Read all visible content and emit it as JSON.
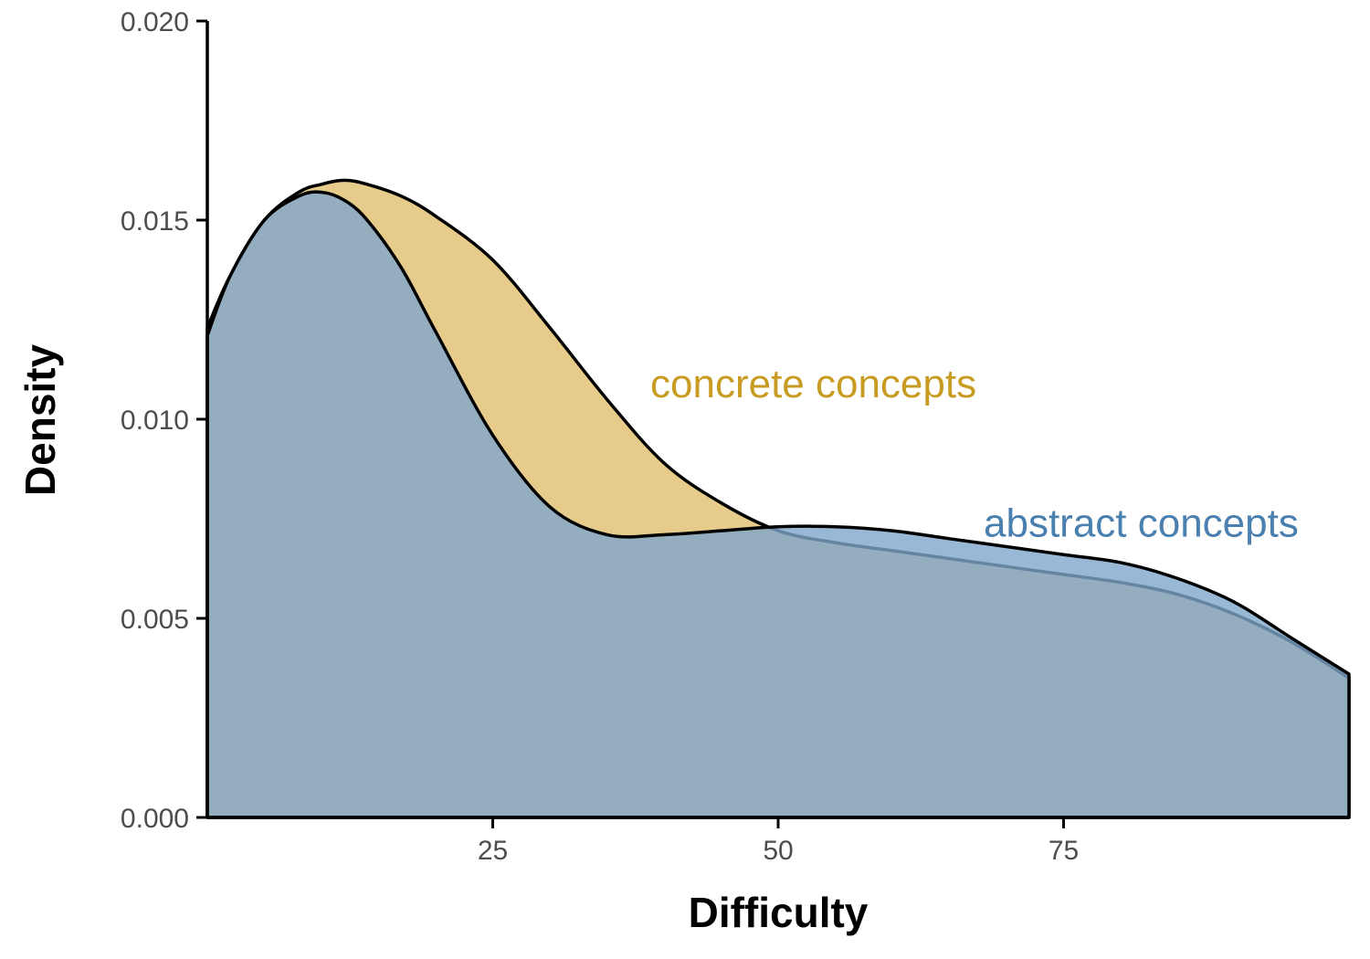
{
  "colors": {
    "concrete_fill": "#e0be6e",
    "abstract_fill": "#7fa6cc",
    "concrete_text": "#c89b22",
    "abstract_text": "#4a80b0",
    "outline": "#000000"
  },
  "chart_data": {
    "type": "area",
    "title": "",
    "xlabel": "Difficulty",
    "ylabel": "Density",
    "xlim": [
      0,
      100
    ],
    "ylim": [
      0,
      0.02
    ],
    "x_ticks": [
      25,
      50,
      75
    ],
    "x_tick_labels": [
      "25",
      "50",
      "75"
    ],
    "y_ticks": [
      0,
      0.005,
      0.01,
      0.015,
      0.02
    ],
    "y_tick_labels": [
      "0.000",
      "0.005",
      "0.010",
      "0.015",
      "0.020"
    ],
    "grid": false,
    "legend": "direct labels",
    "series": [
      {
        "name": "concrete concepts",
        "label": "concrete concepts",
        "label_at": {
          "x": 38.8,
          "y": 0.0109
        },
        "x": [
          0,
          2,
          5,
          8,
          10,
          12,
          14,
          17,
          20,
          25,
          30,
          35,
          40,
          45,
          50,
          55,
          60,
          65,
          70,
          75,
          80,
          85,
          90,
          95,
          100
        ],
        "y": [
          0.0123,
          0.0136,
          0.015,
          0.0157,
          0.0159,
          0.016,
          0.0159,
          0.0156,
          0.0151,
          0.014,
          0.0123,
          0.0105,
          0.0089,
          0.0079,
          0.0072,
          0.0069,
          0.0067,
          0.0065,
          0.0063,
          0.0061,
          0.0059,
          0.0056,
          0.0051,
          0.0044,
          0.0035
        ]
      },
      {
        "name": "abstract concepts",
        "label": "abstract concepts",
        "label_at": {
          "x": 68,
          "y": 0.0074
        },
        "x": [
          0,
          2,
          5,
          8,
          10,
          12,
          14,
          17,
          20,
          25,
          30,
          35,
          40,
          45,
          50,
          55,
          60,
          65,
          70,
          75,
          80,
          85,
          90,
          95,
          100
        ],
        "y": [
          0.0121,
          0.0136,
          0.015,
          0.0156,
          0.0157,
          0.0155,
          0.015,
          0.0138,
          0.0122,
          0.0096,
          0.0078,
          0.0071,
          0.0071,
          0.0072,
          0.0073,
          0.0073,
          0.0072,
          0.007,
          0.0068,
          0.0066,
          0.0064,
          0.006,
          0.0054,
          0.0045,
          0.0036
        ]
      }
    ]
  }
}
